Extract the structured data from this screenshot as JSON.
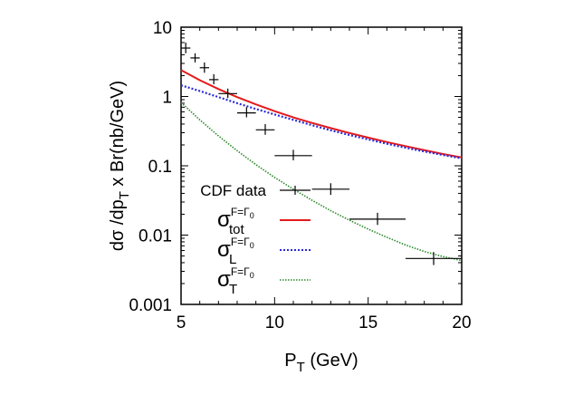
{
  "chart_data": {
    "type": "line",
    "xlabel": {
      "main": "P",
      "sub": "T",
      "unit": " (GeV)"
    },
    "ylabel": {
      "p1": "dσ /dp",
      "sub": "T",
      "p2": " x Br(nb/GeV)"
    },
    "xlim": [
      5,
      20
    ],
    "ylim": [
      0.001,
      10
    ],
    "yscale": "log",
    "x_ticks": [
      "5",
      "10",
      "15",
      "20"
    ],
    "y_ticks": [
      "0.001",
      "0.01",
      "0.1",
      "1",
      "10"
    ],
    "grid": false,
    "legend_position": "bottom-left",
    "series": [
      {
        "name": "CDF data",
        "kind": "points",
        "color": "#000000",
        "points": [
          {
            "x": 5.25,
            "y": 5.0,
            "xlo": 5.0,
            "xhi": 5.5,
            "ylo": 4.2,
            "yhi": 6.0
          },
          {
            "x": 5.75,
            "y": 3.6,
            "xlo": 5.5,
            "xhi": 6.0,
            "ylo": 3.1,
            "yhi": 4.2
          },
          {
            "x": 6.25,
            "y": 2.6,
            "xlo": 6.0,
            "xhi": 6.5,
            "ylo": 2.2,
            "yhi": 3.1
          },
          {
            "x": 6.75,
            "y": 1.75,
            "xlo": 6.5,
            "xhi": 7.0,
            "ylo": 1.5,
            "yhi": 2.1
          },
          {
            "x": 7.5,
            "y": 1.1,
            "xlo": 7.0,
            "xhi": 8.0,
            "ylo": 0.95,
            "yhi": 1.3
          },
          {
            "x": 8.5,
            "y": 0.58,
            "xlo": 8.0,
            "xhi": 9.0,
            "ylo": 0.5,
            "yhi": 0.7
          },
          {
            "x": 9.5,
            "y": 0.33,
            "xlo": 9.0,
            "xhi": 10.0,
            "ylo": 0.28,
            "yhi": 0.4
          },
          {
            "x": 11.0,
            "y": 0.14,
            "xlo": 10.0,
            "xhi": 12.0,
            "ylo": 0.12,
            "yhi": 0.17
          },
          {
            "x": 13.0,
            "y": 0.046,
            "xlo": 12.0,
            "xhi": 14.0,
            "ylo": 0.038,
            "yhi": 0.056
          },
          {
            "x": 15.5,
            "y": 0.017,
            "xlo": 14.0,
            "xhi": 17.0,
            "ylo": 0.014,
            "yhi": 0.021
          },
          {
            "x": 18.5,
            "y": 0.0046,
            "xlo": 17.0,
            "xhi": 20.0,
            "ylo": 0.0037,
            "yhi": 0.0057
          }
        ]
      },
      {
        "name": {
          "base": "σ",
          "sup": "F=Γ0",
          "sub": "tot"
        },
        "kind": "line",
        "style": "solid",
        "color": "#e41a1c",
        "x": [
          5,
          6,
          7,
          8,
          9,
          10,
          11,
          12,
          13,
          14,
          15,
          16,
          17,
          18,
          19,
          20
        ],
        "y": [
          2.4,
          1.72,
          1.28,
          0.98,
          0.77,
          0.615,
          0.5,
          0.415,
          0.35,
          0.297,
          0.255,
          0.22,
          0.192,
          0.168,
          0.148,
          0.132
        ]
      },
      {
        "name": {
          "base": "σ",
          "sup": "F=Γ0",
          "sub": "L"
        },
        "kind": "line",
        "style": "dotted",
        "color": "#2b2bd9",
        "x": [
          5,
          6,
          7,
          8,
          9,
          10,
          11,
          12,
          13,
          14,
          15,
          16,
          17,
          18,
          19,
          20
        ],
        "y": [
          1.45,
          1.2,
          0.98,
          0.8,
          0.66,
          0.55,
          0.46,
          0.385,
          0.325,
          0.278,
          0.24,
          0.208,
          0.182,
          0.161,
          0.143,
          0.128
        ]
      },
      {
        "name": {
          "base": "σ",
          "sup": "F=Γ0",
          "sub": "T"
        },
        "kind": "line",
        "style": "dotted",
        "color": "#2a8a2a",
        "x": [
          5,
          6,
          7,
          8,
          9,
          10,
          11,
          12,
          13,
          14,
          15,
          16,
          17,
          18,
          19,
          20
        ],
        "y": [
          0.82,
          0.46,
          0.27,
          0.165,
          0.104,
          0.068,
          0.046,
          0.0318,
          0.0225,
          0.0164,
          0.0122,
          0.0093,
          0.0072,
          0.0058,
          0.0049,
          0.0043
        ]
      }
    ]
  }
}
